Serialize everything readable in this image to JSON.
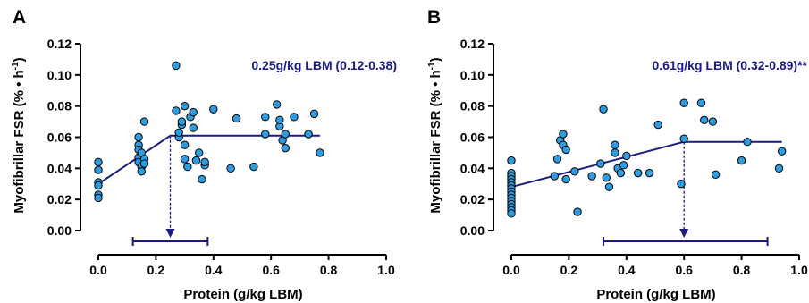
{
  "colors": {
    "fit": "#1a1a80",
    "point": "#2e9ce0",
    "annotation": "#1a1a80",
    "axis": "#000000"
  },
  "chart_data": [
    {
      "panel": "A",
      "type": "scatter",
      "title": "",
      "xlabel": "Protein (g/kg LBM)",
      "ylabel": "Myofibrillar FSR (% • h",
      "ylabel_sup": "-1",
      "ylabel_close": ")",
      "xlim": [
        0,
        1.0
      ],
      "ylim": [
        0,
        0.12
      ],
      "xticks": [
        "0.0",
        "0.2",
        "0.4",
        "0.6",
        "0.8",
        "1.0"
      ],
      "yticks": [
        "0.00",
        "0.02",
        "0.04",
        "0.06",
        "0.08",
        "0.10",
        "0.12"
      ],
      "annotation": "0.25g/kg LBM (0.12-0.38)",
      "breakpoint": 0.25,
      "ci": [
        0.12,
        0.38
      ],
      "fit_line": [
        [
          0.0,
          0.03
        ],
        [
          0.25,
          0.061
        ],
        [
          0.77,
          0.061
        ]
      ],
      "points": [
        [
          0.0,
          0.044
        ],
        [
          0.0,
          0.039
        ],
        [
          0.0,
          0.031
        ],
        [
          0.0,
          0.029
        ],
        [
          0.0,
          0.023
        ],
        [
          0.0,
          0.021
        ],
        [
          0.14,
          0.06
        ],
        [
          0.14,
          0.055
        ],
        [
          0.14,
          0.052
        ],
        [
          0.14,
          0.047
        ],
        [
          0.14,
          0.044
        ],
        [
          0.15,
          0.041
        ],
        [
          0.15,
          0.038
        ],
        [
          0.15,
          0.05
        ],
        [
          0.16,
          0.046
        ],
        [
          0.16,
          0.043
        ],
        [
          0.16,
          0.07
        ],
        [
          0.27,
          0.106
        ],
        [
          0.27,
          0.077
        ],
        [
          0.28,
          0.06
        ],
        [
          0.28,
          0.063
        ],
        [
          0.29,
          0.068
        ],
        [
          0.29,
          0.07
        ],
        [
          0.3,
          0.08
        ],
        [
          0.3,
          0.055
        ],
        [
          0.3,
          0.046
        ],
        [
          0.31,
          0.041
        ],
        [
          0.32,
          0.073
        ],
        [
          0.33,
          0.076
        ],
        [
          0.33,
          0.066
        ],
        [
          0.34,
          0.045
        ],
        [
          0.35,
          0.05
        ],
        [
          0.36,
          0.033
        ],
        [
          0.37,
          0.042
        ],
        [
          0.37,
          0.044
        ],
        [
          0.4,
          0.078
        ],
        [
          0.46,
          0.04
        ],
        [
          0.48,
          0.072
        ],
        [
          0.54,
          0.041
        ],
        [
          0.58,
          0.073
        ],
        [
          0.58,
          0.062
        ],
        [
          0.62,
          0.081
        ],
        [
          0.63,
          0.067
        ],
        [
          0.63,
          0.071
        ],
        [
          0.64,
          0.058
        ],
        [
          0.65,
          0.053
        ],
        [
          0.65,
          0.062
        ],
        [
          0.68,
          0.073
        ],
        [
          0.73,
          0.062
        ],
        [
          0.75,
          0.075
        ],
        [
          0.77,
          0.05
        ]
      ]
    },
    {
      "panel": "B",
      "type": "scatter",
      "title": "",
      "xlabel": "Protein (g/kg LBM)",
      "ylabel": "Myofibrillar FSR (% • h",
      "ylabel_sup": "-1",
      "ylabel_close": ")",
      "xlim": [
        0,
        1.0
      ],
      "ylim": [
        0,
        0.12
      ],
      "xticks": [
        "0.0",
        "0.2",
        "0.4",
        "0.6",
        "0.8",
        "1.0"
      ],
      "yticks": [
        "0.00",
        "0.02",
        "0.04",
        "0.06",
        "0.08",
        "0.10",
        "0.12"
      ],
      "annotation": "0.61g/kg LBM (0.32-0.89)**",
      "breakpoint": 0.6,
      "ci": [
        0.32,
        0.89
      ],
      "fit_line": [
        [
          0.0,
          0.028
        ],
        [
          0.6,
          0.057
        ],
        [
          0.94,
          0.057
        ]
      ],
      "points": [
        [
          0.0,
          0.045
        ],
        [
          0.0,
          0.037
        ],
        [
          0.0,
          0.035
        ],
        [
          0.0,
          0.033
        ],
        [
          0.0,
          0.031
        ],
        [
          0.0,
          0.029
        ],
        [
          0.0,
          0.027
        ],
        [
          0.0,
          0.025
        ],
        [
          0.0,
          0.023
        ],
        [
          0.0,
          0.021
        ],
        [
          0.0,
          0.019
        ],
        [
          0.0,
          0.017
        ],
        [
          0.0,
          0.015
        ],
        [
          0.0,
          0.013
        ],
        [
          0.0,
          0.011
        ],
        [
          0.15,
          0.035
        ],
        [
          0.16,
          0.046
        ],
        [
          0.17,
          0.058
        ],
        [
          0.18,
          0.062
        ],
        [
          0.18,
          0.055
        ],
        [
          0.19,
          0.052
        ],
        [
          0.19,
          0.033
        ],
        [
          0.22,
          0.038
        ],
        [
          0.23,
          0.012
        ],
        [
          0.28,
          0.035
        ],
        [
          0.31,
          0.043
        ],
        [
          0.32,
          0.078
        ],
        [
          0.33,
          0.034
        ],
        [
          0.34,
          0.028
        ],
        [
          0.36,
          0.05
        ],
        [
          0.36,
          0.055
        ],
        [
          0.37,
          0.04
        ],
        [
          0.38,
          0.037
        ],
        [
          0.39,
          0.042
        ],
        [
          0.4,
          0.048
        ],
        [
          0.44,
          0.037
        ],
        [
          0.48,
          0.037
        ],
        [
          0.51,
          0.068
        ],
        [
          0.59,
          0.03
        ],
        [
          0.6,
          0.059
        ],
        [
          0.6,
          0.082
        ],
        [
          0.66,
          0.082
        ],
        [
          0.67,
          0.071
        ],
        [
          0.7,
          0.07
        ],
        [
          0.71,
          0.036
        ],
        [
          0.8,
          0.045
        ],
        [
          0.82,
          0.057
        ],
        [
          0.93,
          0.04
        ],
        [
          0.94,
          0.051
        ]
      ]
    }
  ]
}
